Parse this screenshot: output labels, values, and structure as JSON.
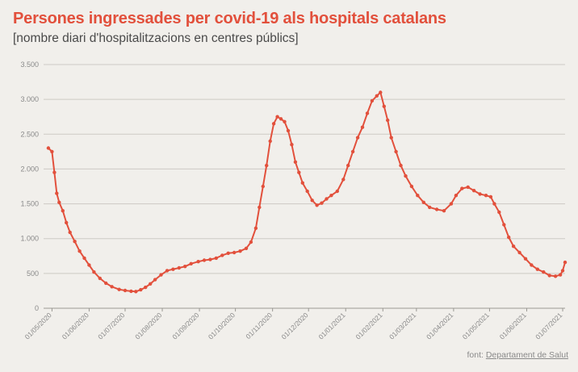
{
  "title": "Persones ingressades per covid-19 als hospitals catalans",
  "subtitle": "[nombre diari d'hospitalitzacions en centres públics]",
  "source": {
    "prefix": "font: ",
    "link_text": "Departament de Salut"
  },
  "colors": {
    "line": "#e2503c",
    "title": "#e2503c",
    "grid": "#cdcac4",
    "background": "#f1efeb"
  },
  "chart_data": {
    "type": "line",
    "ylim": [
      0,
      3500
    ],
    "y_ticks": [
      0,
      500,
      1000,
      1500,
      2000,
      2500,
      3000,
      3500
    ],
    "y_tick_labels": [
      "0",
      "500",
      "1.000",
      "1.500",
      "2.000",
      "2.500",
      "3.000",
      "3.500"
    ],
    "x_ticks": [
      "2020-05-01",
      "2020-06-01",
      "2020-07-01",
      "2020-08-01",
      "2020-09-01",
      "2020-10-01",
      "2020-11-01",
      "2020-12-01",
      "2021-01-01",
      "2021-02-01",
      "2021-03-01",
      "2021-04-01",
      "2021-05-01",
      "2021-06-01",
      "2021-07-01"
    ],
    "x_tick_labels": [
      "01/05/2020",
      "01/06/2020",
      "01/07/2020",
      "01/08/2020",
      "01/09/2020",
      "01/10/2020",
      "01/11/2020",
      "01/12/2020",
      "01/01/2021",
      "01/02/2021",
      "01/03/2021",
      "01/04/2021",
      "01/05/2021",
      "01/06/2021",
      "01/07/2021"
    ],
    "xlim": [
      "2020-04-24",
      "2021-07-03"
    ],
    "grid": true,
    "markers": true,
    "series": [
      {
        "values": [
          [
            "2020-04-28",
            2300
          ],
          [
            "2020-05-01",
            2250
          ],
          [
            "2020-05-03",
            1950
          ],
          [
            "2020-05-05",
            1650
          ],
          [
            "2020-05-07",
            1520
          ],
          [
            "2020-05-10",
            1400
          ],
          [
            "2020-05-13",
            1230
          ],
          [
            "2020-05-16",
            1090
          ],
          [
            "2020-05-20",
            960
          ],
          [
            "2020-05-24",
            820
          ],
          [
            "2020-05-28",
            720
          ],
          [
            "2020-06-01",
            620
          ],
          [
            "2020-06-05",
            520
          ],
          [
            "2020-06-10",
            430
          ],
          [
            "2020-06-15",
            360
          ],
          [
            "2020-06-20",
            310
          ],
          [
            "2020-06-26",
            270
          ],
          [
            "2020-07-01",
            255
          ],
          [
            "2020-07-06",
            245
          ],
          [
            "2020-07-10",
            240
          ],
          [
            "2020-07-14",
            265
          ],
          [
            "2020-07-18",
            300
          ],
          [
            "2020-07-22",
            350
          ],
          [
            "2020-07-26",
            410
          ],
          [
            "2020-07-31",
            480
          ],
          [
            "2020-08-05",
            540
          ],
          [
            "2020-08-10",
            560
          ],
          [
            "2020-08-15",
            580
          ],
          [
            "2020-08-20",
            600
          ],
          [
            "2020-08-25",
            640
          ],
          [
            "2020-08-31",
            670
          ],
          [
            "2020-09-05",
            690
          ],
          [
            "2020-09-10",
            700
          ],
          [
            "2020-09-15",
            720
          ],
          [
            "2020-09-20",
            760
          ],
          [
            "2020-09-25",
            790
          ],
          [
            "2020-09-30",
            800
          ],
          [
            "2020-10-05",
            820
          ],
          [
            "2020-10-10",
            860
          ],
          [
            "2020-10-14",
            950
          ],
          [
            "2020-10-18",
            1150
          ],
          [
            "2020-10-21",
            1450
          ],
          [
            "2020-10-24",
            1750
          ],
          [
            "2020-10-27",
            2050
          ],
          [
            "2020-10-30",
            2400
          ],
          [
            "2020-11-02",
            2650
          ],
          [
            "2020-11-05",
            2750
          ],
          [
            "2020-11-08",
            2720
          ],
          [
            "2020-11-11",
            2680
          ],
          [
            "2020-11-14",
            2550
          ],
          [
            "2020-11-17",
            2350
          ],
          [
            "2020-11-20",
            2100
          ],
          [
            "2020-11-23",
            1950
          ],
          [
            "2020-11-26",
            1800
          ],
          [
            "2020-11-30",
            1680
          ],
          [
            "2020-12-04",
            1550
          ],
          [
            "2020-12-08",
            1480
          ],
          [
            "2020-12-12",
            1510
          ],
          [
            "2020-12-16",
            1570
          ],
          [
            "2020-12-20",
            1620
          ],
          [
            "2020-12-25",
            1680
          ],
          [
            "2020-12-30",
            1850
          ],
          [
            "2021-01-03",
            2050
          ],
          [
            "2021-01-07",
            2250
          ],
          [
            "2021-01-11",
            2450
          ],
          [
            "2021-01-15",
            2600
          ],
          [
            "2021-01-19",
            2800
          ],
          [
            "2021-01-23",
            2980
          ],
          [
            "2021-01-27",
            3050
          ],
          [
            "2021-01-30",
            3100
          ],
          [
            "2021-02-02",
            2900
          ],
          [
            "2021-02-05",
            2700
          ],
          [
            "2021-02-08",
            2450
          ],
          [
            "2021-02-12",
            2250
          ],
          [
            "2021-02-16",
            2050
          ],
          [
            "2021-02-20",
            1900
          ],
          [
            "2021-02-25",
            1750
          ],
          [
            "2021-03-02",
            1620
          ],
          [
            "2021-03-07",
            1520
          ],
          [
            "2021-03-12",
            1450
          ],
          [
            "2021-03-18",
            1420
          ],
          [
            "2021-03-24",
            1400
          ],
          [
            "2021-03-30",
            1500
          ],
          [
            "2021-04-03",
            1620
          ],
          [
            "2021-04-08",
            1720
          ],
          [
            "2021-04-13",
            1740
          ],
          [
            "2021-04-18",
            1690
          ],
          [
            "2021-04-23",
            1640
          ],
          [
            "2021-04-28",
            1620
          ],
          [
            "2021-05-02",
            1600
          ],
          [
            "2021-05-05",
            1500
          ],
          [
            "2021-05-09",
            1380
          ],
          [
            "2021-05-13",
            1200
          ],
          [
            "2021-05-17",
            1020
          ],
          [
            "2021-05-21",
            890
          ],
          [
            "2021-05-26",
            800
          ],
          [
            "2021-05-31",
            710
          ],
          [
            "2021-06-05",
            620
          ],
          [
            "2021-06-10",
            560
          ],
          [
            "2021-06-15",
            520
          ],
          [
            "2021-06-20",
            470
          ],
          [
            "2021-06-25",
            460
          ],
          [
            "2021-06-29",
            480
          ],
          [
            "2021-07-01",
            540
          ],
          [
            "2021-07-03",
            660
          ]
        ]
      }
    ]
  }
}
